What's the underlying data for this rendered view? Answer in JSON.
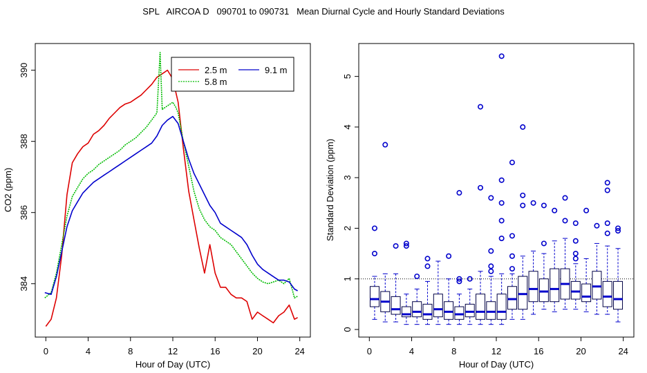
{
  "title": "SPL   AIRCOA D   090701 to 090731   Mean Diurnal Cycle and Hourly Standard Deviations",
  "colors": {
    "red": "#dd0000",
    "green": "#00bb00",
    "blue": "#0000cc",
    "axis": "#000000"
  },
  "chart_data": [
    {
      "type": "line",
      "xlabel": "Hour of Day (UTC)",
      "ylabel": "CO2 (ppm)",
      "xlim": [
        -1,
        25
      ],
      "ylim": [
        382.5,
        390.75
      ],
      "xticks": [
        0,
        4,
        8,
        12,
        16,
        20,
        24
      ],
      "xtick_labels": [
        "0",
        "4",
        "8",
        "12",
        "16",
        "20",
        "24"
      ],
      "yticks": [
        384,
        386,
        388,
        390
      ],
      "ytick_labels": [
        "384",
        "386",
        "388",
        "390"
      ],
      "legend": {
        "position": "top-right",
        "entries": [
          "2.5 m",
          "5.8 m",
          "9.1 m"
        ]
      },
      "series": [
        {
          "name": "2.5 m",
          "color": "#dd0000",
          "x": [
            0,
            0.5,
            1,
            1.5,
            2,
            2.5,
            3,
            3.5,
            4,
            4.5,
            5,
            5.5,
            6,
            6.5,
            7,
            7.5,
            8,
            8.5,
            9,
            9.5,
            10,
            10.5,
            11,
            11.5,
            12,
            12.5,
            13,
            13.5,
            14,
            14.5,
            15,
            15.5,
            16,
            16.5,
            17,
            17.5,
            18,
            18.5,
            19,
            19.5,
            20,
            20.5,
            21,
            21.5,
            22,
            22.5,
            23,
            23.5,
            23.8
          ],
          "y": [
            382.8,
            383.0,
            383.6,
            384.8,
            386.5,
            387.4,
            387.65,
            387.85,
            387.95,
            388.2,
            388.3,
            388.45,
            388.65,
            388.8,
            388.95,
            389.05,
            389.1,
            389.2,
            389.3,
            389.45,
            389.6,
            389.8,
            389.9,
            390.0,
            389.75,
            389.1,
            387.8,
            386.6,
            385.8,
            385.0,
            384.3,
            385.1,
            384.3,
            383.9,
            383.9,
            383.7,
            383.6,
            383.6,
            383.5,
            383.0,
            383.2,
            383.1,
            383.0,
            382.9,
            383.1,
            383.2,
            383.4,
            383.0,
            383.05
          ]
        },
        {
          "name": "5.8 m",
          "color": "#00bb00",
          "x": [
            -0.1,
            0.5,
            1,
            1.5,
            2,
            2.5,
            3,
            3.5,
            4,
            4.5,
            5,
            5.5,
            6,
            6.5,
            7,
            7.5,
            8,
            8.5,
            9,
            9.5,
            10,
            10.5,
            10.8,
            11.0,
            11.5,
            12,
            12.3,
            12.5,
            13,
            13.5,
            14,
            14.5,
            15,
            15.5,
            16,
            16.5,
            17,
            17.5,
            18,
            18.5,
            19,
            19.5,
            20,
            20.5,
            21,
            21.5,
            22,
            22.5,
            23,
            23.5,
            23.8
          ],
          "y": [
            383.6,
            383.75,
            384.3,
            385.1,
            385.9,
            386.45,
            386.7,
            386.95,
            387.1,
            387.2,
            387.35,
            387.45,
            387.55,
            387.65,
            387.75,
            387.9,
            388.0,
            388.1,
            388.25,
            388.4,
            388.6,
            388.8,
            390.5,
            388.9,
            389.0,
            389.1,
            388.95,
            388.8,
            388.0,
            387.3,
            386.6,
            386.1,
            385.8,
            385.6,
            385.5,
            385.3,
            385.2,
            385.1,
            384.9,
            384.7,
            384.5,
            384.3,
            384.15,
            384.05,
            384.0,
            384.05,
            384.1,
            384.0,
            384.15,
            383.6,
            383.65
          ]
        },
        {
          "name": "9.1 m",
          "color": "#0000cc",
          "x": [
            -0.1,
            0.5,
            1,
            1.5,
            2,
            2.5,
            3,
            3.5,
            4,
            4.5,
            5,
            5.5,
            6,
            6.5,
            7,
            7.5,
            8,
            8.5,
            9,
            9.5,
            10,
            10.5,
            11,
            11.5,
            12,
            12.5,
            13,
            13.5,
            14,
            14.5,
            15,
            15.5,
            16,
            16.5,
            17,
            17.5,
            18,
            18.5,
            19,
            19.5,
            20,
            20.5,
            21,
            21.5,
            22,
            22.5,
            23,
            23.5,
            23.8
          ],
          "y": [
            383.75,
            383.7,
            384.2,
            384.9,
            385.6,
            386.05,
            386.3,
            386.55,
            386.7,
            386.85,
            386.95,
            387.05,
            387.15,
            387.25,
            387.35,
            387.45,
            387.55,
            387.65,
            387.75,
            387.85,
            387.95,
            388.15,
            388.45,
            388.6,
            388.7,
            388.5,
            388.0,
            387.5,
            387.1,
            386.8,
            386.5,
            386.2,
            386.0,
            385.7,
            385.6,
            385.5,
            385.4,
            385.3,
            385.1,
            384.8,
            384.55,
            384.4,
            384.3,
            384.2,
            384.1,
            384.1,
            384.05,
            383.85,
            383.8
          ]
        }
      ]
    },
    {
      "type": "box",
      "xlabel": "Hour of Day (UTC)",
      "ylabel": "Standard Deviation (ppm)",
      "xlim": [
        -1,
        25
      ],
      "ylim": [
        -0.15,
        5.65
      ],
      "xticks": [
        0,
        4,
        8,
        12,
        16,
        20,
        24
      ],
      "xtick_labels": [
        "0",
        "4",
        "8",
        "12",
        "16",
        "20",
        "24"
      ],
      "yticks": [
        0,
        1,
        2,
        3,
        4,
        5
      ],
      "ytick_labels": [
        "0",
        "1",
        "2",
        "3",
        "4",
        "5"
      ],
      "reference_line": 1.0,
      "boxes": [
        {
          "x": 0.5,
          "min": 0.2,
          "q1": 0.45,
          "median": 0.6,
          "q3": 0.85,
          "max": 1.05,
          "outliers": [
            1.5,
            2.0
          ]
        },
        {
          "x": 1.5,
          "min": 0.15,
          "q1": 0.35,
          "median": 0.55,
          "q3": 0.75,
          "max": 1.1,
          "outliers": [
            3.65
          ]
        },
        {
          "x": 2.5,
          "min": 0.15,
          "q1": 0.3,
          "median": 0.4,
          "q3": 0.65,
          "max": 1.1,
          "outliers": [
            1.65
          ]
        },
        {
          "x": 3.5,
          "min": 0.1,
          "q1": 0.25,
          "median": 0.3,
          "q3": 0.45,
          "max": 0.7,
          "outliers": [
            1.65,
            1.7
          ]
        },
        {
          "x": 4.5,
          "min": 0.1,
          "q1": 0.25,
          "median": 0.35,
          "q3": 0.55,
          "max": 0.8,
          "outliers": [
            1.05
          ]
        },
        {
          "x": 5.5,
          "min": 0.1,
          "q1": 0.2,
          "median": 0.3,
          "q3": 0.5,
          "max": 0.95,
          "outliers": [
            1.25,
            1.4
          ]
        },
        {
          "x": 6.5,
          "min": 0.1,
          "q1": 0.25,
          "median": 0.4,
          "q3": 0.7,
          "max": 1.35,
          "outliers": []
        },
        {
          "x": 7.5,
          "min": 0.1,
          "q1": 0.2,
          "median": 0.35,
          "q3": 0.55,
          "max": 1.0,
          "outliers": [
            1.45
          ]
        },
        {
          "x": 8.5,
          "min": 0.1,
          "q1": 0.2,
          "median": 0.3,
          "q3": 0.45,
          "max": 0.7,
          "outliers": [
            0.95,
            1.0,
            2.7
          ]
        },
        {
          "x": 9.5,
          "min": 0.1,
          "q1": 0.25,
          "median": 0.35,
          "q3": 0.5,
          "max": 0.8,
          "outliers": [
            1.0
          ]
        },
        {
          "x": 10.5,
          "min": 0.1,
          "q1": 0.2,
          "median": 0.35,
          "q3": 0.7,
          "max": 1.15,
          "outliers": [
            2.8,
            4.4
          ]
        },
        {
          "x": 11.5,
          "min": 0.1,
          "q1": 0.2,
          "median": 0.35,
          "q3": 0.55,
          "max": 1.05,
          "outliers": [
            1.15,
            1.25,
            1.55,
            2.6
          ]
        },
        {
          "x": 12.5,
          "min": 0.1,
          "q1": 0.2,
          "median": 0.35,
          "q3": 0.7,
          "max": 1.1,
          "outliers": [
            1.8,
            2.15,
            2.5,
            2.95,
            5.4
          ]
        },
        {
          "x": 13.5,
          "min": 0.2,
          "q1": 0.4,
          "median": 0.6,
          "q3": 0.85,
          "max": 1.1,
          "outliers": [
            1.2,
            1.45,
            1.85,
            3.3
          ]
        },
        {
          "x": 14.5,
          "min": 0.2,
          "q1": 0.4,
          "median": 0.7,
          "q3": 1.05,
          "max": 1.45,
          "outliers": [
            2.45,
            2.65,
            4.0
          ]
        },
        {
          "x": 15.5,
          "min": 0.3,
          "q1": 0.55,
          "median": 0.8,
          "q3": 1.15,
          "max": 1.55,
          "outliers": [
            2.5
          ]
        },
        {
          "x": 16.5,
          "min": 0.4,
          "q1": 0.55,
          "median": 0.75,
          "q3": 1.0,
          "max": 1.5,
          "outliers": [
            1.7,
            2.45
          ]
        },
        {
          "x": 17.5,
          "min": 0.35,
          "q1": 0.55,
          "median": 0.8,
          "q3": 1.2,
          "max": 1.75,
          "outliers": [
            2.35
          ]
        },
        {
          "x": 18.5,
          "min": 0.4,
          "q1": 0.6,
          "median": 0.9,
          "q3": 1.2,
          "max": 1.8,
          "outliers": [
            2.15,
            2.6
          ]
        },
        {
          "x": 19.5,
          "min": 0.4,
          "q1": 0.6,
          "median": 0.75,
          "q3": 0.95,
          "max": 1.3,
          "outliers": [
            1.4,
            1.5,
            1.75,
            2.1
          ]
        },
        {
          "x": 20.5,
          "min": 0.35,
          "q1": 0.55,
          "median": 0.65,
          "q3": 0.9,
          "max": 1.4,
          "outliers": [
            2.35
          ]
        },
        {
          "x": 21.5,
          "min": 0.3,
          "q1": 0.6,
          "median": 0.85,
          "q3": 1.15,
          "max": 1.7,
          "outliers": [
            2.05
          ]
        },
        {
          "x": 22.5,
          "min": 0.3,
          "q1": 0.45,
          "median": 0.65,
          "q3": 0.95,
          "max": 1.65,
          "outliers": [
            1.9,
            2.1,
            2.75,
            2.9
          ]
        },
        {
          "x": 23.5,
          "min": 0.15,
          "q1": 0.4,
          "median": 0.6,
          "q3": 0.95,
          "max": 1.6,
          "outliers": [
            1.95,
            2.0
          ]
        }
      ]
    }
  ]
}
